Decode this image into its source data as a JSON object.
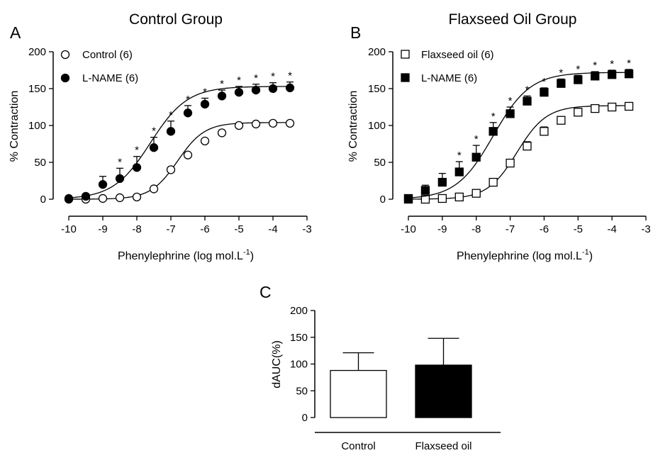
{
  "chart_data": [
    {
      "panel": "A",
      "type": "scatter",
      "title": "Control Group",
      "xlabel": "Phenylephrine (log mol.L",
      "xlabel_sup": "-1",
      "xlabel_close": ")",
      "ylabel": "% Contraction",
      "xlim": [
        -10,
        -3
      ],
      "ylim": [
        0,
        200
      ],
      "xticks": [
        -10,
        -9,
        -8,
        -7,
        -6,
        -5,
        -4,
        -3
      ],
      "yticks": [
        0,
        50,
        100,
        150,
        200
      ],
      "legend_position": "top-left",
      "series": [
        {
          "name": "Control (6)",
          "marker": "open-circle",
          "x": [
            -10,
            -9.5,
            -9,
            -8.5,
            -8,
            -7.5,
            -7,
            -6.5,
            -6,
            -5.5,
            -5,
            -4.5,
            -4,
            -3.5
          ],
          "y": [
            0,
            0,
            1,
            2,
            3,
            14,
            40,
            60,
            79,
            90,
            100,
            102,
            103,
            103
          ],
          "err": [
            0,
            0,
            0,
            0,
            0,
            0,
            0,
            0,
            0,
            0,
            0,
            0,
            0,
            0
          ],
          "fit": {
            "bottom": 0,
            "top": 104,
            "logEC50": -6.8,
            "hill": 1.1
          }
        },
        {
          "name": "L-NAME (6)",
          "marker": "filled-circle",
          "x": [
            -10,
            -9.5,
            -9,
            -8.5,
            -8,
            -7.5,
            -7,
            -6.5,
            -6,
            -5.5,
            -5,
            -4.5,
            -4,
            -3.5
          ],
          "y": [
            1,
            4,
            20,
            28,
            43,
            70,
            92,
            117,
            129,
            140,
            145,
            148,
            150,
            151
          ],
          "err": [
            0,
            0,
            11,
            14,
            15,
            14,
            14,
            10,
            8,
            8,
            8,
            8,
            8,
            8
          ],
          "sig": [
            false,
            false,
            false,
            true,
            true,
            true,
            true,
            true,
            true,
            true,
            true,
            true,
            true,
            true
          ],
          "fit": {
            "bottom": 0,
            "top": 153,
            "logEC50": -7.6,
            "hill": 0.8
          }
        }
      ]
    },
    {
      "panel": "B",
      "type": "scatter",
      "title": "Flaxseed Oil Group",
      "xlabel": "Phenylephrine (log mol.L",
      "xlabel_sup": "-1",
      "xlabel_close": ")",
      "ylabel": "% Contraction",
      "xlim": [
        -10,
        -3
      ],
      "ylim": [
        0,
        200
      ],
      "xticks": [
        -10,
        -9,
        -8,
        -7,
        -6,
        -5,
        -4,
        -3
      ],
      "yticks": [
        0,
        50,
        100,
        150,
        200
      ],
      "legend_position": "top-left",
      "series": [
        {
          "name": "Flaxseed oil (6)",
          "marker": "open-square",
          "x": [
            -10,
            -9.5,
            -9,
            -8.5,
            -8,
            -7.5,
            -7,
            -6.5,
            -6,
            -5.5,
            -5,
            -4.5,
            -4,
            -3.5
          ],
          "y": [
            0,
            0,
            1,
            3,
            8,
            23,
            49,
            72,
            92,
            107,
            118,
            123,
            125,
            126
          ],
          "err": [
            0,
            0,
            0,
            0,
            0,
            0,
            5,
            6,
            6,
            4,
            0,
            0,
            0,
            0
          ],
          "fit": {
            "bottom": 0,
            "top": 127,
            "logEC50": -6.8,
            "hill": 1.0
          }
        },
        {
          "name": "L-NAME (6)",
          "marker": "filled-square",
          "x": [
            -10,
            -9.5,
            -9,
            -8.5,
            -8,
            -7.5,
            -7,
            -6.5,
            -6,
            -5.5,
            -5,
            -4.5,
            -4,
            -3.5
          ],
          "y": [
            1,
            12,
            23,
            37,
            57,
            92,
            116,
            133,
            145,
            157,
            162,
            167,
            169,
            170
          ],
          "err": [
            0,
            7,
            12,
            14,
            16,
            12,
            9,
            7,
            6,
            6,
            6,
            6,
            6,
            6
          ],
          "sig": [
            false,
            false,
            false,
            true,
            true,
            true,
            true,
            true,
            true,
            true,
            true,
            true,
            true,
            true
          ],
          "fit": {
            "bottom": 0,
            "top": 172,
            "logEC50": -7.5,
            "hill": 0.8
          }
        }
      ]
    },
    {
      "panel": "C",
      "type": "bar",
      "title": "",
      "xlabel": "",
      "ylabel": "dAUC(%)",
      "ylim": [
        0,
        200
      ],
      "yticks": [
        0,
        50,
        100,
        150,
        200
      ],
      "categories": [
        "Control",
        "Flaxseed oil"
      ],
      "values": [
        88,
        98
      ],
      "err": [
        33,
        50
      ],
      "fills": [
        "#ffffff",
        "#000000"
      ]
    }
  ],
  "sig_marker": "*"
}
